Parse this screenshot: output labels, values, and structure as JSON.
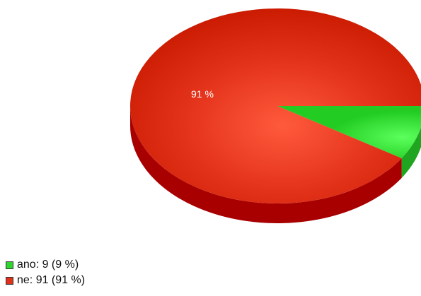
{
  "chart_data": {
    "type": "pie",
    "style": "3d",
    "title": "",
    "slices": [
      {
        "name": "ano",
        "value": 9,
        "percent": 9,
        "color": "#2fd42f",
        "side_color": "#1fa51f"
      },
      {
        "name": "ne",
        "value": 91,
        "percent": 91,
        "color": "#e0301a",
        "side_color": "#a80000"
      }
    ],
    "data_labels": [
      {
        "slice": "ne",
        "text": "91 %"
      }
    ],
    "legend": {
      "position": "bottom-left",
      "entries": [
        {
          "text": "ano: 9 (9 %)",
          "color": "#2fd42f"
        },
        {
          "text": "ne: 91 (91 %)",
          "color": "#e0301a"
        }
      ]
    }
  }
}
